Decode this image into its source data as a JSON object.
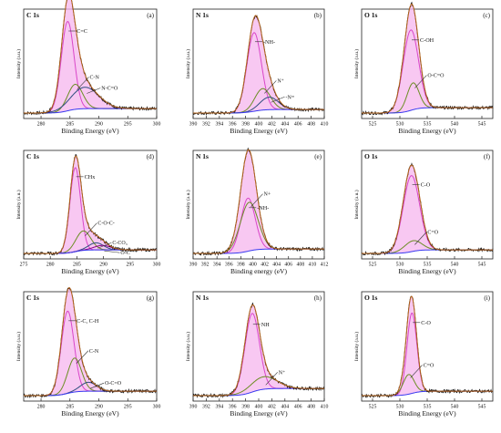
{
  "chart_data": [
    {
      "type": "line",
      "title": "C 1s",
      "panel_label": "(a)",
      "xlabel": "Binding Energy (eV)",
      "ylabel": "Intensity (a.u.)",
      "xlim": [
        277,
        300
      ],
      "ticks": [
        "280",
        "285",
        "290",
        "295",
        "300"
      ],
      "tick_values": [
        280,
        285,
        290,
        295,
        300
      ],
      "peaks": [
        {
          "label": "C=C",
          "center": 284.6,
          "height": 1.0,
          "width": 1.1,
          "color": "#d946c8"
        },
        {
          "label": "C-N",
          "center": 285.9,
          "height": 0.28,
          "width": 1.3,
          "color": "#6b8e23"
        },
        {
          "label": "N-C=O",
          "center": 287.6,
          "height": 0.24,
          "width": 2.4,
          "color": "#2f4f7f"
        }
      ],
      "baseline": [
        0.0,
        0.05
      ]
    },
    {
      "type": "line",
      "title": "N 1s",
      "panel_label": "(b)",
      "xlabel": "Binding Energy (eV)",
      "ylabel": "Intensity (a.u.)",
      "xlim": [
        390,
        410
      ],
      "ticks": [
        "390",
        "392",
        "394",
        "396",
        "398",
        "400",
        "402",
        "404",
        "406",
        "408",
        "410"
      ],
      "tick_values": [
        390,
        392,
        394,
        396,
        398,
        400,
        402,
        404,
        406,
        408,
        410
      ],
      "peaks": [
        {
          "label": "-NH-",
          "center": 399.3,
          "height": 0.88,
          "width": 1.1,
          "color": "#d946c8"
        },
        {
          "label": "N⁺",
          "center": 400.6,
          "height": 0.24,
          "width": 1.2,
          "color": "#6b8e23"
        },
        {
          "label": "-N=",
          "center": 401.6,
          "height": 0.14,
          "width": 1.4,
          "color": "#2f4f7f"
        }
      ],
      "baseline": [
        0.0,
        0.04
      ]
    },
    {
      "type": "line",
      "title": "O 1s",
      "panel_label": "(c)",
      "xlabel": "Binding Energy (eV)",
      "ylabel": "Intensity (a.u.)",
      "xlim": [
        523,
        547
      ],
      "ticks": [
        "525",
        "530",
        "535",
        "540",
        "545"
      ],
      "tick_values": [
        525,
        530,
        535,
        540,
        545
      ],
      "peaks": [
        {
          "label": "C-OH",
          "center": 532.0,
          "height": 0.9,
          "width": 1.4,
          "color": "#d946c8"
        },
        {
          "label": "O-C=O",
          "center": 532.4,
          "height": 0.3,
          "width": 1.1,
          "color": "#6b8e23"
        }
      ],
      "baseline": [
        0.0,
        0.06
      ]
    },
    {
      "type": "line",
      "title": "C 1s",
      "panel_label": "(d)",
      "xlabel": "Binding Energy (eV)",
      "ylabel": "Intensity (a.u.)",
      "xlim": [
        275,
        300
      ],
      "ticks": [
        "275",
        "280",
        "285",
        "290",
        "295",
        "300"
      ],
      "tick_values": [
        275,
        280,
        285,
        290,
        295,
        300
      ],
      "peaks": [
        {
          "label": "CHx",
          "center": 284.7,
          "height": 0.95,
          "width": 1.0,
          "color": "#d946c8"
        },
        {
          "label": "C-O-C-",
          "center": 286.2,
          "height": 0.22,
          "width": 1.4,
          "color": "#6b8e23"
        },
        {
          "label": "C-CO₃",
          "center": 288.6,
          "height": 0.08,
          "width": 1.4,
          "color": "#2f4f7f"
        },
        {
          "label": "O-C",
          "center": 289.8,
          "height": 0.05,
          "width": 1.6,
          "color": "#8b008b"
        }
      ],
      "baseline": [
        0.0,
        0.04
      ]
    },
    {
      "type": "line",
      "title": "N 1s",
      "panel_label": "(e)",
      "xlabel": "Binding energy (eV)",
      "ylabel": "Intensity (a.u.)",
      "xlim": [
        390,
        412
      ],
      "ticks": [
        "390",
        "392",
        "394",
        "396",
        "398",
        "400",
        "402",
        "404",
        "406",
        "408",
        "410",
        "412"
      ],
      "tick_values": [
        390,
        392,
        394,
        396,
        398,
        400,
        402,
        404,
        406,
        408,
        410,
        412
      ],
      "peaks": [
        {
          "label": "-NH-",
          "center": 399.2,
          "height": 0.6,
          "width": 1.2,
          "color": "#d946c8"
        },
        {
          "label": "N+",
          "center": 399.4,
          "height": 0.55,
          "width": 1.5,
          "color": "#6b8e23"
        }
      ],
      "baseline": [
        0.0,
        0.05
      ]
    },
    {
      "type": "line",
      "title": "O 1s",
      "panel_label": "(f)",
      "xlabel": "Binding Energy (eV)",
      "ylabel": "Intensity (a.u.)",
      "xlim": [
        523,
        547
      ],
      "ticks": [
        "525",
        "530",
        "535",
        "540",
        "545"
      ],
      "tick_values": [
        525,
        530,
        535,
        540,
        545
      ],
      "peaks": [
        {
          "label": "C-O",
          "center": 532.1,
          "height": 0.86,
          "width": 1.5,
          "color": "#d946c8"
        },
        {
          "label": "C=O",
          "center": 532.4,
          "height": 0.12,
          "width": 1.6,
          "color": "#6b8e23"
        }
      ],
      "baseline": [
        0.0,
        0.04
      ]
    },
    {
      "type": "line",
      "title": "C 1s",
      "panel_label": "(g)",
      "xlabel": "Binding Energy (eV)",
      "ylabel": "Intensity (a.u.)",
      "xlim": [
        277,
        300
      ],
      "ticks": [
        "280",
        "285",
        "290",
        "295",
        "300"
      ],
      "tick_values": [
        280,
        285,
        290,
        295,
        300
      ],
      "peaks": [
        {
          "label": "C-C, C-H",
          "center": 284.6,
          "height": 0.92,
          "width": 1.1,
          "color": "#d946c8"
        },
        {
          "label": "C-N",
          "center": 285.8,
          "height": 0.38,
          "width": 1.2,
          "color": "#6b8e23"
        },
        {
          "label": "O-C=O",
          "center": 288.2,
          "height": 0.1,
          "width": 1.4,
          "color": "#2f4f7f"
        }
      ],
      "baseline": [
        0.0,
        0.05
      ]
    },
    {
      "type": "line",
      "title": "N 1s",
      "panel_label": "(h)",
      "xlabel": "Binding Energy (eV)",
      "ylabel": "Intensity (a.u.)",
      "xlim": [
        390,
        410
      ],
      "ticks": [
        "390",
        "392",
        "394",
        "396",
        "398",
        "400",
        "402",
        "404",
        "406",
        "408",
        "410"
      ],
      "tick_values": [
        390,
        392,
        394,
        396,
        398,
        400,
        402,
        404,
        406,
        408,
        410
      ],
      "peaks": [
        {
          "label": "NH",
          "center": 399.0,
          "height": 0.88,
          "width": 1.1,
          "color": "#d946c8"
        },
        {
          "label": "N⁺",
          "center": 400.8,
          "height": 0.14,
          "width": 2.0,
          "color": "#6b8e23"
        }
      ],
      "baseline": [
        0.0,
        0.08
      ]
    },
    {
      "type": "line",
      "title": "O 1s",
      "panel_label": "(i)",
      "xlabel": "Binding Energy (eV)",
      "ylabel": "Intensity (a.u.)",
      "xlim": [
        523,
        547
      ],
      "ticks": [
        "525",
        "530",
        "535",
        "540",
        "545"
      ],
      "tick_values": [
        525,
        530,
        535,
        540,
        545
      ],
      "peaks": [
        {
          "label": "C-O",
          "center": 532.2,
          "height": 0.9,
          "width": 0.9,
          "color": "#d946c8"
        },
        {
          "label": "C=O",
          "center": 531.6,
          "height": 0.22,
          "width": 1.0,
          "color": "#6b8e23"
        }
      ],
      "baseline": [
        0.0,
        0.05
      ]
    }
  ],
  "colors": {
    "raw": "#111111",
    "envelope": "#b5651d",
    "background": "#3a3af0",
    "fill": "#f5b6ee"
  }
}
